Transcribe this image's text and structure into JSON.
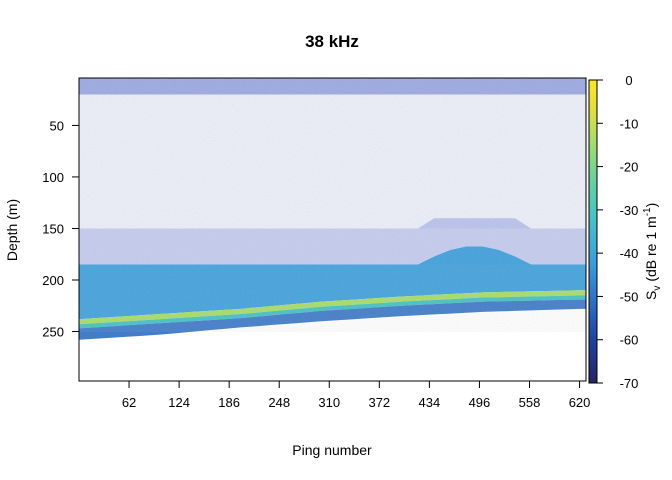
{
  "chart_data": {
    "type": "heatmap",
    "title": "38 kHz",
    "xlabel": "Ping number",
    "ylabel": "Depth (m)",
    "colorbar_label": "S",
    "colorbar_label_sub": "v",
    "colorbar_label_unit": "(dB re 1 m",
    "colorbar_label_sup": "-1",
    "colorbar_label_close": ")",
    "xlim": [
      0,
      628
    ],
    "ylim": [
      298,
      4
    ],
    "x_ticks": [
      62,
      124,
      186,
      248,
      310,
      372,
      434,
      496,
      558,
      620
    ],
    "y_ticks": [
      50,
      100,
      150,
      200,
      250
    ],
    "colorbar_range": [
      -70,
      0
    ],
    "colorbar_ticks": [
      0,
      -10,
      -20,
      -30,
      -40,
      -50,
      -60,
      -70
    ],
    "colormap": [
      "#262462",
      "#1f3f9a",
      "#2d6fc4",
      "#3a9edb",
      "#48c2c4",
      "#6ad39a",
      "#a9dc6a",
      "#e8de3a",
      "#fde725"
    ],
    "sparse_color": "#7f8fd9",
    "layers": [
      {
        "name": "surface",
        "from_depth": 4,
        "to_depth": 20,
        "density": 0.9
      },
      {
        "name": "upper-scatter",
        "from_depth": 20,
        "to_depth": 150,
        "density": 0.12
      },
      {
        "name": "mid-band",
        "from_depth": 150,
        "to_depth": 185,
        "density": 0.45
      },
      {
        "name": "dense-layer",
        "from_depth": 185,
        "to_depth": 232,
        "density": 1.0
      }
    ],
    "seabed_depth": {
      "ping": [
        0,
        100,
        200,
        300,
        400,
        500,
        620
      ],
      "depth": [
        240,
        235,
        230,
        223,
        218,
        214,
        212
      ]
    },
    "bottom_edge_depth": {
      "ping": [
        0,
        100,
        200,
        300,
        400,
        500,
        620
      ],
      "depth": [
        258,
        253,
        246,
        240,
        235,
        231,
        228
      ]
    }
  }
}
